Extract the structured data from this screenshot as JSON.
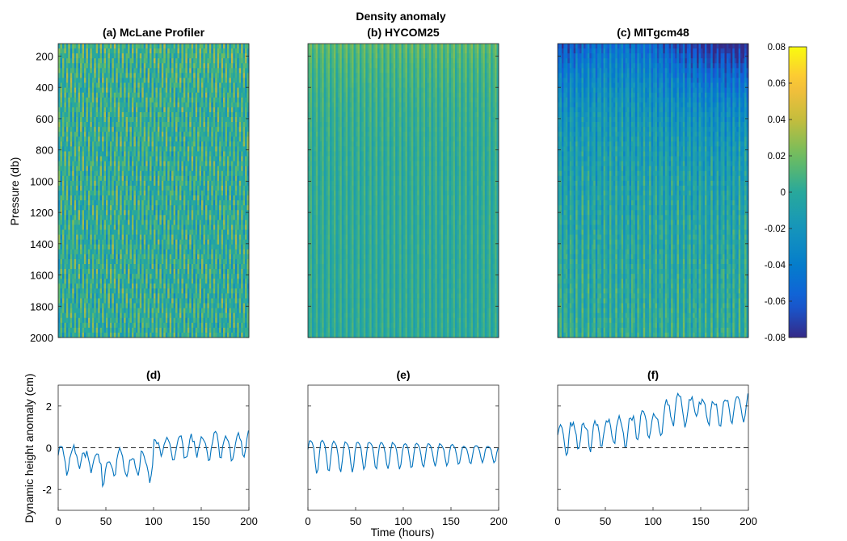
{
  "figure": {
    "suptitle": "Density anomaly",
    "xlabel": "Time (hours)",
    "ylabel_top": "Pressure (db)",
    "ylabel_bottom": "Dynamic height anomaly (cm)"
  },
  "chart_data": [
    {
      "type": "heatmap",
      "title": "(a) McLane Profiler",
      "x": {
        "range": [
          0,
          200
        ],
        "label": "Time (hours)"
      },
      "y": {
        "range": [
          2000,
          120
        ],
        "reversed": true,
        "ticks": [
          200,
          400,
          600,
          800,
          1000,
          1200,
          1400,
          1600,
          1800,
          2000
        ],
        "label": "Pressure (db)"
      },
      "colormap": "parula",
      "clim": [
        -0.08,
        0.08
      ],
      "pattern": {
        "bands": 42,
        "amplitude": 0.024,
        "slant": 0.12,
        "noise": 0.011,
        "surface_bias": 0.006,
        "band_period_h": 12.4
      }
    },
    {
      "type": "heatmap",
      "title": "(b) HYCOM25",
      "x": {
        "range": [
          0,
          200
        ]
      },
      "y": {
        "range": [
          2000,
          120
        ],
        "reversed": true
      },
      "colormap": "parula",
      "clim": [
        -0.08,
        0.08
      ],
      "pattern": {
        "bands": 32,
        "amplitude": 0.012,
        "slant": 0.0,
        "noise": 0.002,
        "surface_bias": 0.014,
        "band_period_h": 12.4
      }
    },
    {
      "type": "heatmap",
      "title": "(c) MITgcm48",
      "x": {
        "range": [
          0,
          200
        ]
      },
      "y": {
        "range": [
          2000,
          120
        ],
        "reversed": true
      },
      "colormap": "parula",
      "clim": [
        -0.08,
        0.08
      ],
      "pattern": {
        "bands": 34,
        "amplitude": 0.018,
        "slant": 0.0,
        "noise": 0.006,
        "surface_bias": -0.055,
        "band_period_h": 12.4
      }
    },
    {
      "type": "colorbar",
      "clim": [
        -0.08,
        0.08
      ],
      "ticks": [
        0.08,
        0.06,
        0.04,
        0.02,
        0,
        -0.02,
        -0.04,
        -0.06,
        -0.08
      ],
      "tick_labels": [
        "0.08",
        "0.06",
        "0.04",
        "0.02",
        "0",
        "-0.02",
        "-0.04",
        "-0.06",
        "-0.08"
      ]
    },
    {
      "type": "line",
      "title": "(d)",
      "xlim": [
        0,
        200
      ],
      "ylim": [
        -3,
        3
      ],
      "xticks": [
        0,
        50,
        100,
        150,
        200
      ],
      "yticks": [
        -2,
        0,
        2
      ],
      "zero_line": "dashed",
      "series": [
        {
          "x_step": 1.5,
          "mean": -0.6,
          "trend": 0.005,
          "tidal_amp": 0.55,
          "period": 12.4,
          "noise": 0.55,
          "low_window": [
            45,
            100
          ],
          "low_shift": -0.6,
          "color": "#0072bd"
        }
      ]
    },
    {
      "type": "line",
      "title": "(e)",
      "xlim": [
        0,
        200
      ],
      "ylim": [
        -3,
        3
      ],
      "xticks": [
        0,
        50,
        100,
        150,
        200
      ],
      "yticks": [
        -2,
        0,
        2
      ],
      "zero_line": "dashed",
      "series": [
        {
          "x_step": 1.5,
          "mean": -0.25,
          "trend": 0.0,
          "tidal_amp": 0.8,
          "amp_decay": 0.55,
          "period": 12.4,
          "noise": 0.08,
          "color": "#0072bd"
        }
      ]
    },
    {
      "type": "line",
      "title": "(f)",
      "xlim": [
        0,
        200
      ],
      "ylim": [
        -3,
        3
      ],
      "xticks": [
        0,
        50,
        100,
        150,
        200
      ],
      "yticks": [
        -2,
        0,
        2
      ],
      "zero_line": "dashed",
      "series": [
        {
          "x_step": 1.5,
          "mean": 0.5,
          "trend": 0.008,
          "tidal_amp": 0.6,
          "period": 12.4,
          "noise": 0.45,
          "high_window": [
            110,
            150
          ],
          "high_shift": 0.3,
          "color": "#0072bd"
        }
      ]
    }
  ]
}
